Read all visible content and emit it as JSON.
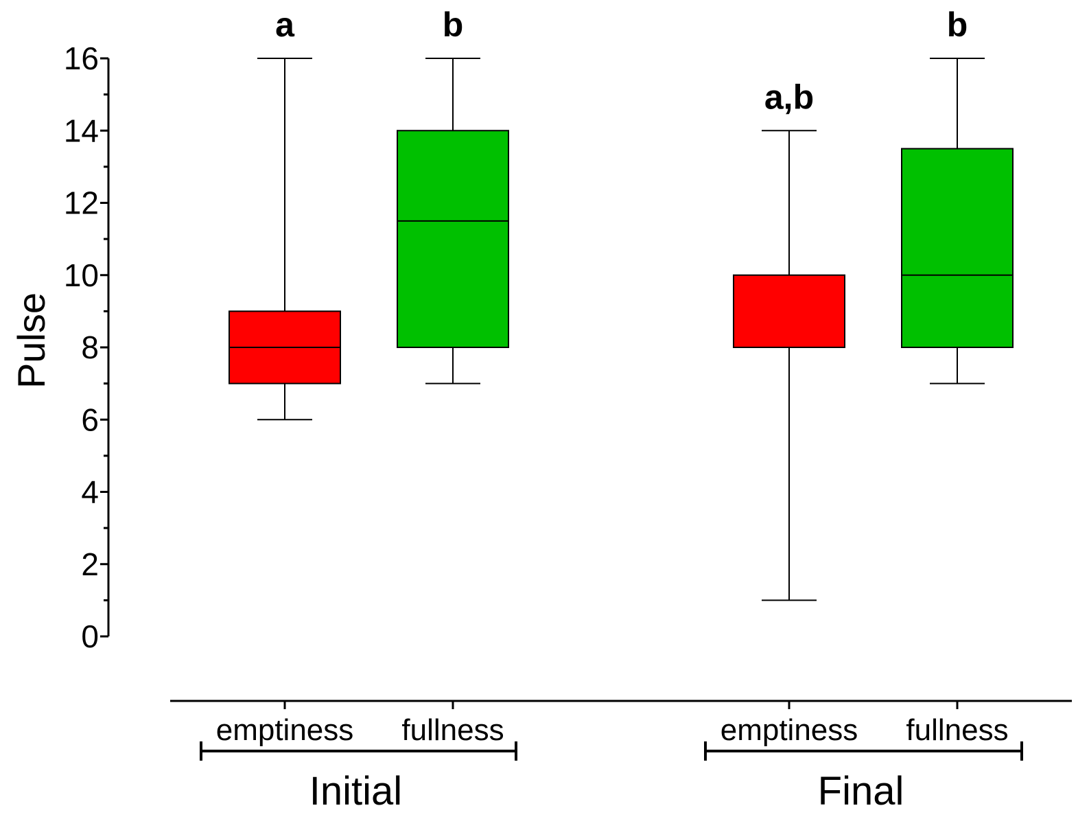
{
  "chart_data": {
    "type": "box",
    "ylabel": "Pulse",
    "xlabel": "",
    "title": "",
    "ylim": [
      0,
      16
    ],
    "yticks": [
      0,
      2,
      4,
      6,
      8,
      10,
      12,
      14,
      16
    ],
    "y_minor_step": 1,
    "grid": false,
    "groups": [
      {
        "label": "Initial",
        "categories": [
          "emptiness",
          "fullness"
        ]
      },
      {
        "label": "Final",
        "categories": [
          "emptiness",
          "fullness"
        ]
      }
    ],
    "boxes": [
      {
        "group": "Initial",
        "category": "emptiness",
        "min": 6,
        "q1": 7,
        "median": 8,
        "q3": 9,
        "max": 16,
        "color": "#ff0000",
        "significance": "a"
      },
      {
        "group": "Initial",
        "category": "fullness",
        "min": 7,
        "q1": 8,
        "median": 11.5,
        "q3": 14,
        "max": 16,
        "color": "#00c000",
        "significance": "b"
      },
      {
        "group": "Final",
        "category": "emptiness",
        "min": 1,
        "q1": 8,
        "median": 8,
        "q3": 10,
        "max": 14,
        "color": "#ff0000",
        "significance": "a,b"
      },
      {
        "group": "Final",
        "category": "fullness",
        "min": 7,
        "q1": 8,
        "median": 10,
        "q3": 13.5,
        "max": 16,
        "color": "#00c000",
        "significance": "b"
      }
    ]
  }
}
